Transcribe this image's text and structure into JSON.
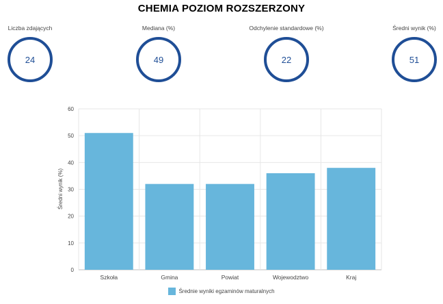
{
  "header": {
    "title": "CHEMIA POZIOM ROZSZERZONY"
  },
  "stats": [
    {
      "label": "Liczba zdających",
      "value": "24"
    },
    {
      "label": "Mediana (%)",
      "value": "49"
    },
    {
      "label": "Odchylenie standardowe (%)",
      "value": "22"
    },
    {
      "label": "Średni wynik (%)",
      "value": "51"
    }
  ],
  "colors": {
    "ring": "#1f4e96",
    "bar": "#67b6dc",
    "grid": "#e6e6e6"
  },
  "chart_data": {
    "type": "bar",
    "categories": [
      "Szkoła",
      "Gmina",
      "Powiat",
      "Wojewodztwo",
      "Kraj"
    ],
    "series": [
      {
        "name": "Średnie wyniki egzaminów maturalnych",
        "values": [
          51,
          32,
          32,
          36,
          38
        ]
      }
    ],
    "xlabel": "",
    "ylabel": "Średni wynik (%)",
    "ylim": [
      0,
      60
    ],
    "yticks": [
      0,
      10,
      20,
      30,
      40,
      50,
      60
    ],
    "grid": true,
    "legend": "bottom"
  }
}
